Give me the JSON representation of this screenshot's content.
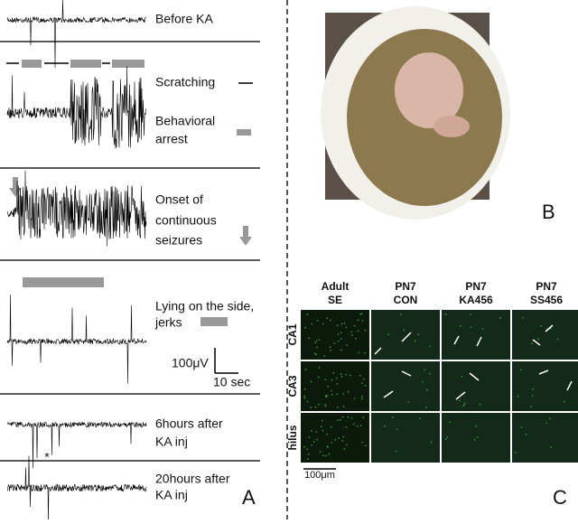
{
  "panel_a": {
    "label": "A",
    "rows": [
      {
        "lines": [
          "Before KA"
        ]
      },
      {
        "lines": [
          "Scratching"
        ],
        "lines2": [
          "Behavioral",
          "arrest"
        ]
      },
      {
        "lines": [
          "Onset of",
          "continuous",
          "seizures"
        ]
      },
      {
        "lines": [
          "Lying on the side,",
          "jerks"
        ]
      },
      {
        "lines": [
          "6hours after",
          "KA inj"
        ],
        "marker": "*"
      },
      {
        "lines": [
          "20hours after",
          "KA inj"
        ]
      }
    ],
    "scale_bar": {
      "amplitude": "100μV",
      "time": "10 sec"
    }
  },
  "panel_b": {
    "label": "B"
  },
  "panel_c": {
    "label": "C",
    "columns": [
      [
        "Adult",
        "SE"
      ],
      [
        "PN7",
        "CON"
      ],
      [
        "PN7",
        "KA456"
      ],
      [
        "PN7",
        "SS456"
      ]
    ],
    "rows": [
      "CA1",
      "CA3",
      "hilus"
    ],
    "scale_bar": "100μm"
  }
}
